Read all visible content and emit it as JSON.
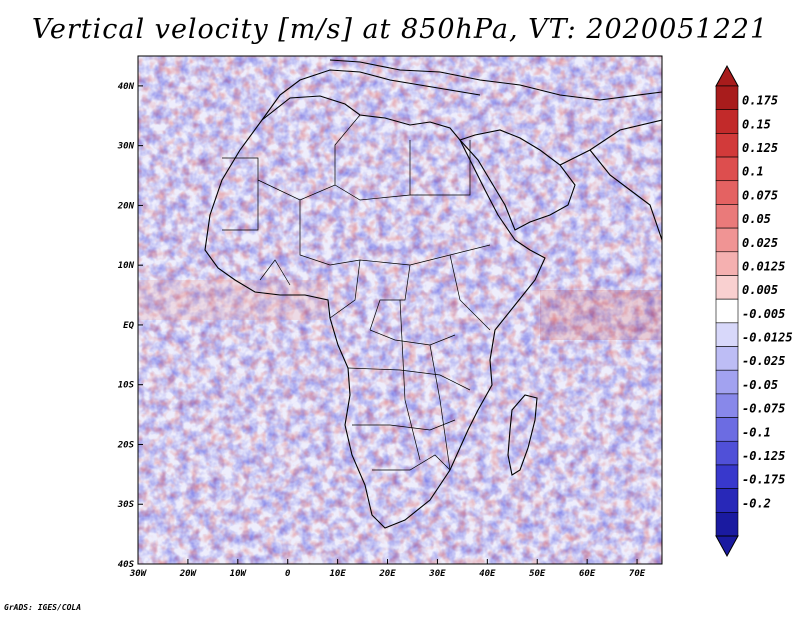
{
  "title": "Vertical velocity [m/s] at 850hPa, VT: 2020051221",
  "credit": "GrADS: IGES/COLA",
  "map": {
    "lon_ticks": [
      "30W",
      "20W",
      "10W",
      "0",
      "10E",
      "20E",
      "30E",
      "40E",
      "50E",
      "60E",
      "70E"
    ],
    "lat_ticks": [
      "40N",
      "30N",
      "20N",
      "10N",
      "EQ",
      "10S",
      "20S",
      "30S",
      "40S"
    ],
    "lon_range": [
      -30,
      75
    ],
    "lat_range": [
      -40,
      45
    ]
  },
  "colorbar": {
    "labels": [
      "0.175",
      "0.15",
      "0.125",
      "0.1",
      "0.075",
      "0.05",
      "0.025",
      "0.0125",
      "0.005",
      "-0.005",
      "-0.0125",
      "-0.025",
      "-0.05",
      "-0.075",
      "-0.1",
      "-0.125",
      "-0.175",
      "-0.2"
    ],
    "colors": [
      "#a81c1c",
      "#c22a2a",
      "#d23a3a",
      "#dd4e4e",
      "#e46262",
      "#ea7a7a",
      "#f09494",
      "#f5b0b0",
      "#f9d0d0",
      "#ffffff",
      "#d8d8fa",
      "#bdbdf5",
      "#a2a2f0",
      "#8888ea",
      "#6c6ce2",
      "#5050d8",
      "#3838cc",
      "#2828b8",
      "#1a1aa0"
    ]
  }
}
